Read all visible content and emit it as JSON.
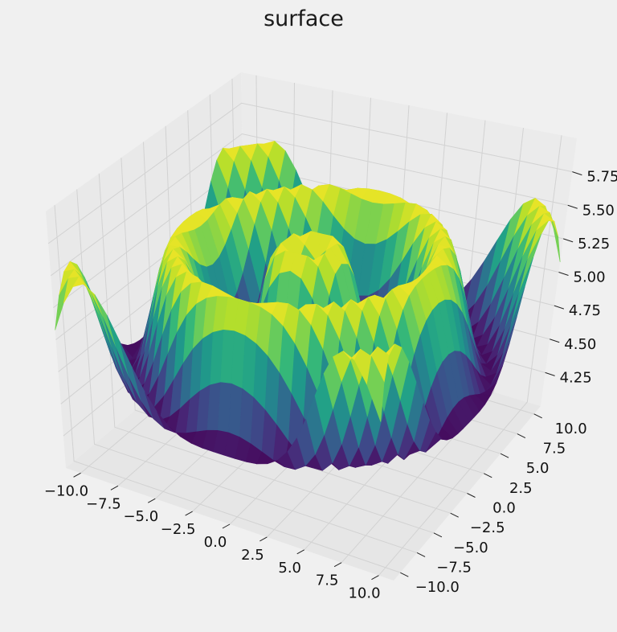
{
  "chart_data": {
    "type": "surface",
    "title": "surface",
    "function": "z = sin(sqrt(x^2 + y^2)) / 2 + 5",
    "x": {
      "range": [
        -11,
        11
      ],
      "samples": 31,
      "ticks": [
        "−10.0",
        "−7.5",
        "−5.0",
        "−2.5",
        "0.0",
        "2.5",
        "5.0",
        "7.5",
        "10.0"
      ],
      "values": [
        -10,
        -7.5,
        -5,
        -2.5,
        0,
        2.5,
        5,
        7.5,
        10
      ]
    },
    "y": {
      "range": [
        -11,
        11
      ],
      "samples": 31,
      "ticks": [
        "−10.0",
        "−7.5",
        "−5.0",
        "−2.5",
        "0.0",
        "2.5",
        "5.0",
        "7.5",
        "10.0"
      ],
      "values": [
        -10,
        -7.5,
        -5,
        -2.5,
        0,
        2.5,
        5,
        7.5,
        10
      ]
    },
    "z": {
      "range": [
        4.0,
        6.0
      ],
      "ticks": [
        "4.25",
        "4.50",
        "4.75",
        "5.00",
        "5.25",
        "5.50",
        "5.75"
      ],
      "values": [
        4.25,
        4.5,
        4.75,
        5.0,
        5.25,
        5.5,
        5.75
      ]
    },
    "colormap": [
      "#440154",
      "#482878",
      "#3e4989",
      "#31688e",
      "#26828e",
      "#1f9e89",
      "#35b779",
      "#6ece58",
      "#b5de2b",
      "#fde725"
    ],
    "grid": true
  }
}
